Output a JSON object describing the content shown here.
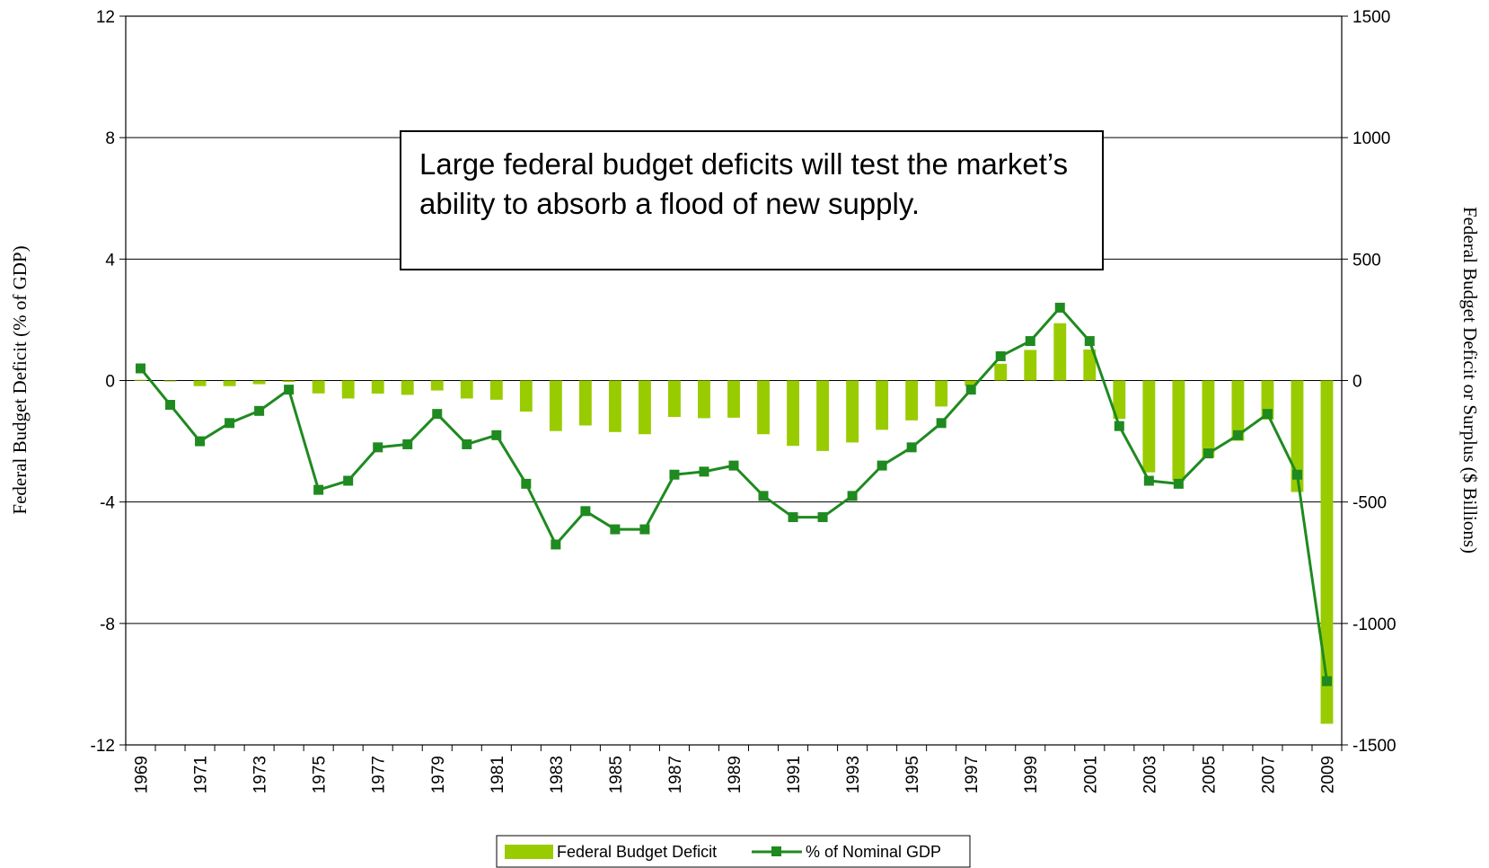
{
  "chart_data": {
    "type": "bar",
    "categories": [
      1969,
      1970,
      1971,
      1972,
      1973,
      1974,
      1975,
      1976,
      1977,
      1978,
      1979,
      1980,
      1981,
      1982,
      1983,
      1984,
      1985,
      1986,
      1987,
      1988,
      1989,
      1990,
      1991,
      1992,
      1993,
      1994,
      1995,
      1996,
      1997,
      1998,
      1999,
      2000,
      2001,
      2002,
      2003,
      2004,
      2005,
      2006,
      2007,
      2008,
      2009
    ],
    "x_tick_labels": [
      "1969",
      "1971",
      "1973",
      "1975",
      "1977",
      "1979",
      "1981",
      "1983",
      "1985",
      "1987",
      "1989",
      "1991",
      "1993",
      "1995",
      "1997",
      "1999",
      "2001",
      "2003",
      "2005",
      "2007",
      "2009"
    ],
    "series": [
      {
        "name": "Federal Budget Deficit",
        "axis": "right",
        "kind": "bar",
        "color": "#99cc00",
        "values": [
          3,
          -3,
          -23,
          -23,
          -15,
          -6,
          -53,
          -74,
          -54,
          -59,
          -41,
          -74,
          -79,
          -128,
          -208,
          -185,
          -212,
          -221,
          -150,
          -155,
          -153,
          -221,
          -269,
          -290,
          -255,
          -203,
          -164,
          -107,
          -22,
          69,
          126,
          236,
          128,
          -158,
          -378,
          -413,
          -318,
          -248,
          -161,
          -459,
          -1413
        ]
      },
      {
        "name": "% of Nominal GDP",
        "axis": "left",
        "kind": "line",
        "color": "#1f8a1f",
        "values": [
          0.4,
          -0.8,
          -2.0,
          -1.4,
          -1.0,
          -0.3,
          -3.6,
          -3.3,
          -2.2,
          -2.1,
          -1.1,
          -2.1,
          -1.8,
          -3.4,
          -5.4,
          -4.3,
          -4.9,
          -4.9,
          -3.1,
          -3.0,
          -2.8,
          -3.8,
          -4.5,
          -4.5,
          -3.8,
          -2.8,
          -2.2,
          -1.4,
          -0.3,
          0.8,
          1.3,
          2.4,
          1.3,
          -1.5,
          -3.3,
          -3.4,
          -2.4,
          -1.8,
          -1.1,
          -3.1,
          -9.9
        ]
      }
    ],
    "y_left": {
      "label": "Federal Budget Deficit (% of GDP)",
      "min": -12,
      "max": 12,
      "ticks": [
        "12",
        "8",
        "4",
        "0",
        "-4",
        "-8",
        "-12"
      ]
    },
    "y_right": {
      "label": "Federal Budget Deficit or Surplus ($ Billions)",
      "min": -1500,
      "max": 1500,
      "ticks": [
        "1500",
        "1000",
        "500",
        "0",
        "-500",
        "-1000",
        "-1500"
      ]
    },
    "grid": true,
    "legend_position": "bottom-center",
    "annotation": "Large federal budget deficits will test the market’s ability to absorb a flood of new supply."
  }
}
